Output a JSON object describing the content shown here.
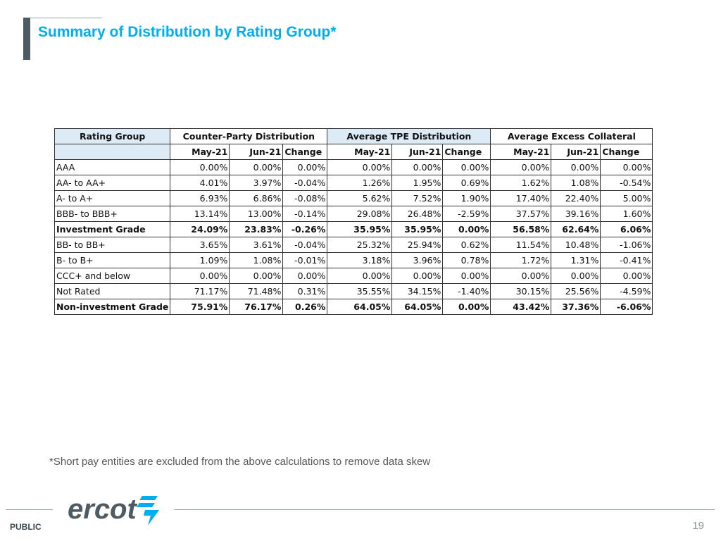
{
  "slide": {
    "title": "Summary of Distribution by Rating Group*",
    "footnote": "*Short pay entities are excluded from the above calculations to remove data skew",
    "classification": "PUBLIC",
    "page_number": "19",
    "logo_text": "ercot",
    "accent_color": "#00aeef",
    "header_fill": "#ddebf7"
  },
  "table": {
    "rating_group_label": "Rating Group",
    "groups": [
      "Counter-Party Distribution",
      "Average TPE Distribution",
      "Average Excess Collateral"
    ],
    "subheaders": [
      "May-21",
      "Jun-21",
      "Change"
    ],
    "rows": [
      {
        "label": "AAA",
        "values": [
          "0.00%",
          "0.00%",
          "0.00%",
          "0.00%",
          "0.00%",
          "0.00%",
          "0.00%",
          "0.00%",
          "0.00%"
        ]
      },
      {
        "label": "AA- to AA+",
        "values": [
          "4.01%",
          "3.97%",
          "-0.04%",
          "1.26%",
          "1.95%",
          "0.69%",
          "1.62%",
          "1.08%",
          "-0.54%"
        ]
      },
      {
        "label": "A- to A+",
        "values": [
          "6.93%",
          "6.86%",
          "-0.08%",
          "5.62%",
          "7.52%",
          "1.90%",
          "17.40%",
          "22.40%",
          "5.00%"
        ]
      },
      {
        "label": "BBB- to BBB+",
        "values": [
          "13.14%",
          "13.00%",
          "-0.14%",
          "29.08%",
          "26.48%",
          "-2.59%",
          "37.57%",
          "39.16%",
          "1.60%"
        ]
      },
      {
        "label": "Investment Grade",
        "bold": true,
        "values": [
          "24.09%",
          "23.83%",
          "-0.26%",
          "35.95%",
          "35.95%",
          "0.00%",
          "56.58%",
          "62.64%",
          "6.06%"
        ]
      },
      {
        "label": "BB- to BB+",
        "values": [
          "3.65%",
          "3.61%",
          "-0.04%",
          "25.32%",
          "25.94%",
          "0.62%",
          "11.54%",
          "10.48%",
          "-1.06%"
        ]
      },
      {
        "label": "B- to B+",
        "values": [
          "1.09%",
          "1.08%",
          "-0.01%",
          "3.18%",
          "3.96%",
          "0.78%",
          "1.72%",
          "1.31%",
          "-0.41%"
        ]
      },
      {
        "label": "CCC+ and below",
        "values": [
          "0.00%",
          "0.00%",
          "0.00%",
          "0.00%",
          "0.00%",
          "0.00%",
          "0.00%",
          "0.00%",
          "0.00%"
        ]
      },
      {
        "label": "Not Rated",
        "values": [
          "71.17%",
          "71.48%",
          "0.31%",
          "35.55%",
          "34.15%",
          "-1.40%",
          "30.15%",
          "25.56%",
          "-4.59%"
        ]
      },
      {
        "label": "Non-investment Grade",
        "bold": true,
        "values": [
          "75.91%",
          "76.17%",
          "0.26%",
          "64.05%",
          "64.05%",
          "0.00%",
          "43.42%",
          "37.36%",
          "-6.06%"
        ]
      }
    ]
  }
}
